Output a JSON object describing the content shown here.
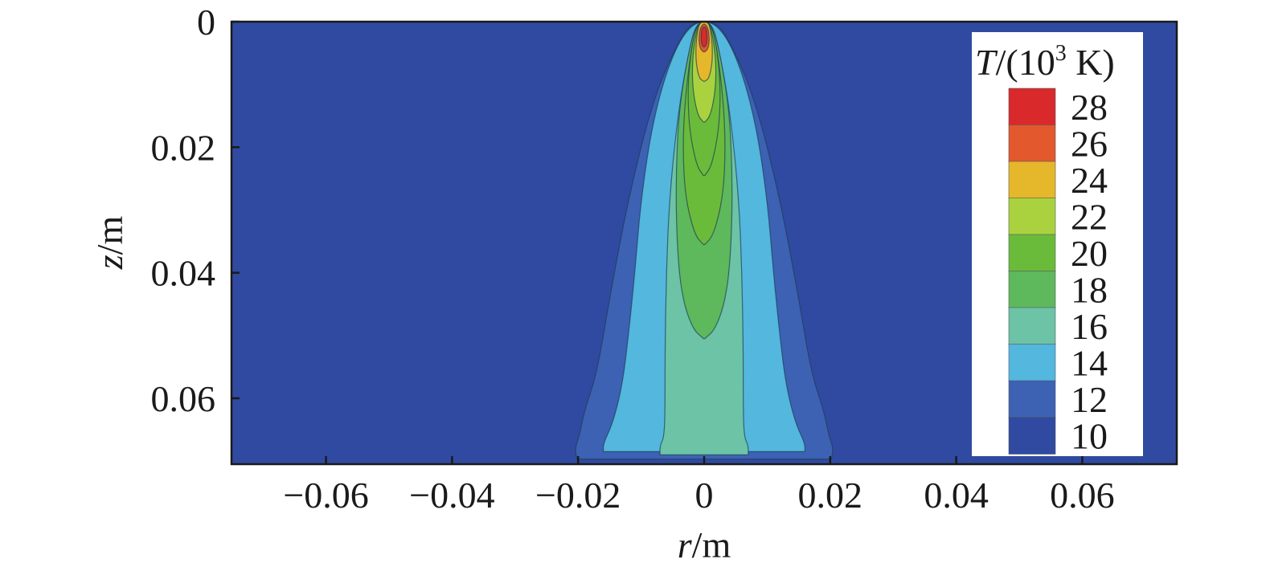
{
  "chart_data": {
    "type": "heatmap",
    "title": "",
    "xlabel": {
      "var": "r",
      "unit": "/m"
    },
    "ylabel": {
      "var": "z",
      "unit": "/m"
    },
    "xlim": [
      -0.075,
      0.075
    ],
    "ylim": [
      0.0705,
      0
    ],
    "y_axis_inverted": true,
    "x_ticks": [
      -0.06,
      -0.04,
      -0.02,
      0,
      0.02,
      0.04,
      0.06
    ],
    "x_tick_labels": [
      "−0.06",
      "−0.04",
      "−0.02",
      "0",
      "0.02",
      "0.04",
      "0.06"
    ],
    "y_ticks": [
      0,
      0.02,
      0.04,
      0.06
    ],
    "y_tick_labels": [
      "0",
      "0.02",
      "0.04",
      "0.06"
    ],
    "grid": false,
    "legend": {
      "position": "top-right",
      "title": {
        "var": "T",
        "unit_prefix": "/(10",
        "unit_exp": "3",
        "unit_suffix": " K)"
      },
      "levels": [
        10,
        12,
        14,
        16,
        18,
        20,
        22,
        24,
        26,
        28
      ],
      "level_labels": [
        "10",
        "12",
        "14",
        "16",
        "18",
        "20",
        "22",
        "24",
        "26",
        "28"
      ],
      "colors": [
        "#2f4aa0",
        "#3d62b3",
        "#53b7de",
        "#6cc3a6",
        "#5eb85c",
        "#6abb3a",
        "#a9d23e",
        "#e5b72a",
        "#e3582c",
        "#d9292b"
      ]
    },
    "background_color": "#2f4aa0",
    "contours": [
      {
        "level": 10,
        "color": "#3d62b3",
        "width": [
          0.0202,
          0.0205,
          0.0198,
          0.019,
          0.017,
          0.015,
          0.012,
          0.008,
          0.004,
          0.0018
        ],
        "z": [
          0.0697,
          0.068,
          0.066,
          0.062,
          0.056,
          0.044,
          0.028,
          0.012,
          0.003,
          0.0
        ]
      },
      {
        "level": 12,
        "color": "#53b7de",
        "width": [
          0.016,
          0.016,
          0.0145,
          0.013,
          0.012,
          0.011,
          0.01,
          0.008,
          0.005,
          0.0018
        ],
        "z": [
          0.0685,
          0.0672,
          0.064,
          0.058,
          0.05,
          0.04,
          0.028,
          0.015,
          0.005,
          0.0
        ]
      },
      {
        "level": 14,
        "color": "#6cc3a6",
        "width": [
          0.007,
          0.007,
          0.0063,
          0.0062,
          0.0062,
          0.006,
          0.0055,
          0.0042,
          0.0025,
          0.0012
        ],
        "z": [
          0.069,
          0.0675,
          0.066,
          0.06,
          0.052,
          0.04,
          0.028,
          0.015,
          0.005,
          0.0
        ]
      },
      {
        "level": 16,
        "color": "#5eb85c",
        "width": [
          0.0001,
          0.0018,
          0.0035,
          0.0043,
          0.0045,
          0.004,
          0.0025,
          0.0012
        ],
        "z": [
          0.0505,
          0.049,
          0.044,
          0.036,
          0.025,
          0.014,
          0.005,
          0.0
        ]
      },
      {
        "level": 18,
        "color": "#6abb3a",
        "width": [
          0.0001,
          0.0015,
          0.003,
          0.0034,
          0.003,
          0.002,
          0.001
        ],
        "z": [
          0.0355,
          0.034,
          0.028,
          0.02,
          0.012,
          0.004,
          0.0
        ]
      },
      {
        "level": 20,
        "color": "#6abb3a",
        "width": [
          0.0001,
          0.0012,
          0.0024,
          0.0026,
          0.002,
          0.001
        ],
        "z": [
          0.0245,
          0.023,
          0.017,
          0.01,
          0.004,
          0.0
        ]
      },
      {
        "level": 22,
        "color": "#a9d23e",
        "width": [
          0.0001,
          0.001,
          0.0018,
          0.0019,
          0.0014,
          0.0008
        ],
        "z": [
          0.016,
          0.015,
          0.011,
          0.0065,
          0.0025,
          0.0
        ]
      },
      {
        "level": 24,
        "color": "#e5b72a",
        "width": [
          0.0001,
          0.0008,
          0.0013,
          0.0013,
          0.001,
          0.0006
        ],
        "z": [
          0.0095,
          0.009,
          0.0065,
          0.0035,
          0.0012,
          0.0
        ]
      },
      {
        "level": 26,
        "color": "#e3582c",
        "width": [
          0.0001,
          0.0005,
          0.0008,
          0.0008,
          0.0006,
          0.0002
        ],
        "z": [
          0.0048,
          0.0045,
          0.0035,
          0.0022,
          0.001,
          0.0004
        ]
      },
      {
        "level": 28,
        "color": "#d9292b",
        "width": [
          0.0001,
          0.0004,
          0.0005,
          0.0004,
          0.0001
        ],
        "z": [
          0.004,
          0.0036,
          0.0025,
          0.0012,
          0.0008
        ]
      }
    ]
  }
}
